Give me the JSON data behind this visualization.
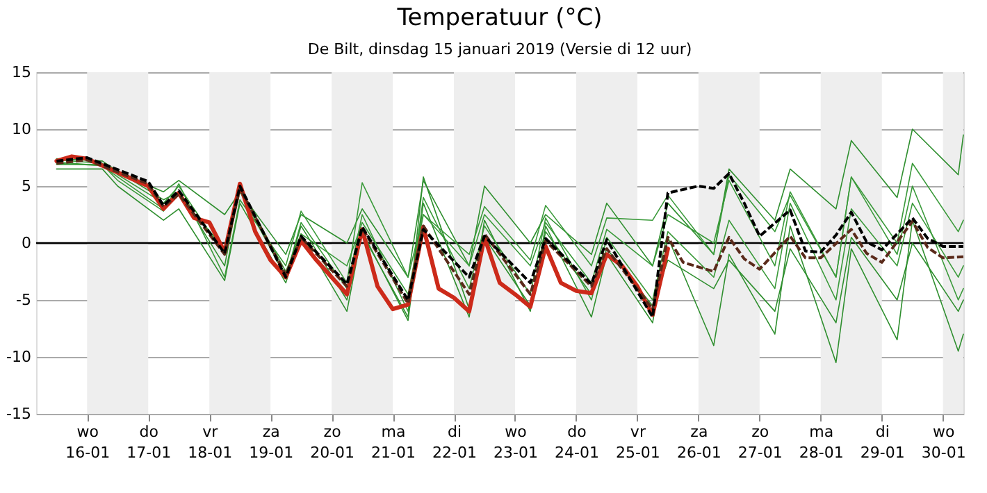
{
  "chart_data": {
    "type": "line",
    "title": "Temperatuur (°C)",
    "subtitle": "De Bilt, dinsdag 15 januari 2019 (Versie di 12 uur)",
    "xlim": [
      "2019-01-15T04:00",
      "2019-01-30T08:00"
    ],
    "xticks": [
      {
        "value": "2019-01-16T00:00",
        "label": "wo\n16-01"
      },
      {
        "value": "2019-01-17T00:00",
        "label": "do\n17-01"
      },
      {
        "value": "2019-01-18T00:00",
        "label": "vr\n18-01"
      },
      {
        "value": "2019-01-19T00:00",
        "label": "za\n19-01"
      },
      {
        "value": "2019-01-20T00:00",
        "label": "zo\n20-01"
      },
      {
        "value": "2019-01-21T00:00",
        "label": "ma\n21-01"
      },
      {
        "value": "2019-01-22T00:00",
        "label": "di\n22-01"
      },
      {
        "value": "2019-01-23T00:00",
        "label": "wo\n23-01"
      },
      {
        "value": "2019-01-24T00:00",
        "label": "do\n24-01"
      },
      {
        "value": "2019-01-25T00:00",
        "label": "vr\n25-01"
      },
      {
        "value": "2019-01-26T00:00",
        "label": "za\n26-01"
      },
      {
        "value": "2019-01-27T00:00",
        "label": "zo\n27-01"
      },
      {
        "value": "2019-01-28T00:00",
        "label": "ma\n28-01"
      },
      {
        "value": "2019-01-29T00:00",
        "label": "di\n29-01"
      },
      {
        "value": "2019-01-30T00:00",
        "label": "wo\n30-01"
      }
    ],
    "ylim": [
      -15,
      15
    ],
    "yticks": [
      -15,
      -10,
      -5,
      0,
      5,
      10,
      15
    ],
    "grid": "y",
    "line_style": "solid",
    "ref_lines": [
      {
        "axis": "y",
        "value": 0,
        "color": "#000000"
      }
    ],
    "bands": [
      {
        "axis": "x",
        "from": "2019-01-16T00:00",
        "to": "2019-01-17T00:00",
        "color": "#eeeeee"
      },
      {
        "axis": "x",
        "from": "2019-01-18T00:00",
        "to": "2019-01-19T00:00",
        "color": "#eeeeee"
      },
      {
        "axis": "x",
        "from": "2019-01-20T00:00",
        "to": "2019-01-21T00:00",
        "color": "#eeeeee"
      },
      {
        "axis": "x",
        "from": "2019-01-22T00:00",
        "to": "2019-01-23T00:00",
        "color": "#eeeeee"
      },
      {
        "axis": "x",
        "from": "2019-01-24T00:00",
        "to": "2019-01-25T00:00",
        "color": "#eeeeee"
      },
      {
        "axis": "x",
        "from": "2019-01-26T00:00",
        "to": "2019-01-27T00:00",
        "color": "#eeeeee"
      },
      {
        "axis": "x",
        "from": "2019-01-28T00:00",
        "to": "2019-01-29T00:00",
        "color": "#eeeeee"
      },
      {
        "axis": "x",
        "from": "2019-01-30T00:00",
        "to": "2019-01-30T08:00",
        "color": "#eeeeee"
      }
    ],
    "series": [
      {
        "color": "#2f8f2f",
        "x": [
          "2019-01-15T12:00",
          "2019-01-16T06:00",
          "2019-01-16T12:00",
          "2019-01-17T06:00",
          "2019-01-17T12:00",
          "2019-01-18T06:00",
          "2019-01-18T12:00",
          "2019-01-19T06:00",
          "2019-01-19T12:00",
          "2019-01-20T06:00",
          "2019-01-20T12:00",
          "2019-01-21T06:00",
          "2019-01-21T12:00",
          "2019-01-22T06:00",
          "2019-01-22T12:00",
          "2019-01-23T06:00",
          "2019-01-23T12:00",
          "2019-01-24T06:00",
          "2019-01-24T12:00",
          "2019-01-25T06:00",
          "2019-01-25T12:00",
          "2019-01-26T06:00",
          "2019-01-26T12:00",
          "2019-01-27T06:00",
          "2019-01-27T12:00",
          "2019-01-28T06:00",
          "2019-01-28T12:00",
          "2019-01-29T06:00",
          "2019-01-29T12:00",
          "2019-01-30T06:00",
          "2019-01-30T08:00"
        ],
        "values": [
          7.0,
          6.8,
          6.2,
          4.5,
          5.5,
          2.5,
          4.5,
          -1,
          2.5,
          0,
          3,
          -3,
          5.5,
          -2,
          5,
          0,
          2.5,
          -1,
          3.5,
          -2,
          3.5,
          -1,
          6.5,
          2,
          6.5,
          3,
          9,
          4,
          10,
          6,
          9.5
        ]
      },
      {
        "color": "#2f8f2f",
        "x": [
          "2019-01-15T12:00",
          "2019-01-16T06:00",
          "2019-01-16T12:00",
          "2019-01-17T06:00",
          "2019-01-17T12:00",
          "2019-01-18T06:00",
          "2019-01-18T12:00",
          "2019-01-19T06:00",
          "2019-01-19T12:00",
          "2019-01-20T06:00",
          "2019-01-20T12:00",
          "2019-01-21T06:00",
          "2019-01-21T12:00",
          "2019-01-22T06:00",
          "2019-01-22T12:00",
          "2019-01-23T06:00",
          "2019-01-23T12:00",
          "2019-01-24T06:00",
          "2019-01-24T12:00",
          "2019-01-25T06:00",
          "2019-01-25T12:00",
          "2019-01-26T06:00",
          "2019-01-26T12:00",
          "2019-01-27T06:00",
          "2019-01-27T12:00",
          "2019-01-28T06:00",
          "2019-01-28T12:00",
          "2019-01-29T06:00",
          "2019-01-29T12:00",
          "2019-01-30T06:00",
          "2019-01-30T08:00"
        ],
        "values": [
          6.5,
          6.5,
          5.0,
          2.0,
          3.0,
          -3.3,
          3.5,
          -3.5,
          0.8,
          -6,
          1,
          -6.8,
          3.5,
          -6.5,
          2,
          -6,
          1.5,
          -6.5,
          -1,
          -7,
          0.5,
          -9,
          -1,
          -8,
          1.5,
          -10.5,
          -0.5,
          -8.5,
          2,
          -9.5,
          -8
        ]
      },
      {
        "color": "#3a9a3a",
        "x": [
          "2019-01-15T12:00",
          "2019-01-16T06:00",
          "2019-01-16T12:00",
          "2019-01-17T06:00",
          "2019-01-17T12:00",
          "2019-01-18T06:00",
          "2019-01-18T12:00",
          "2019-01-19T06:00",
          "2019-01-19T12:00",
          "2019-01-20T06:00",
          "2019-01-20T12:00",
          "2019-01-21T06:00",
          "2019-01-21T12:00",
          "2019-01-22T06:00",
          "2019-01-22T12:00",
          "2019-01-23T06:00",
          "2019-01-23T12:00",
          "2019-01-24T06:00",
          "2019-01-24T12:00",
          "2019-01-25T06:00",
          "2019-01-25T12:00",
          "2019-01-26T06:00",
          "2019-01-26T12:00",
          "2019-01-27T06:00",
          "2019-01-27T12:00",
          "2019-01-28T06:00",
          "2019-01-28T12:00",
          "2019-01-29T06:00",
          "2019-01-29T12:00",
          "2019-01-30T06:00",
          "2019-01-30T08:00"
        ],
        "values": [
          7.3,
          7.0,
          6.0,
          3.5,
          5.0,
          -1,
          4.5,
          -3,
          1.8,
          -4,
          2.5,
          -6,
          4,
          -4,
          1.5,
          -4.5,
          2.2,
          -5,
          0.5,
          -5,
          1,
          -3,
          2,
          -4,
          3.5,
          -5,
          3,
          -2,
          3.5,
          -3,
          -2
        ]
      },
      {
        "color": "#3a9a3a",
        "x": [
          "2019-01-15T12:00",
          "2019-01-16T06:00",
          "2019-01-16T12:00",
          "2019-01-17T06:00",
          "2019-01-17T12:00",
          "2019-01-18T06:00",
          "2019-01-18T12:00",
          "2019-01-19T06:00",
          "2019-01-19T12:00",
          "2019-01-20T06:00",
          "2019-01-20T12:00",
          "2019-01-21T06:00",
          "2019-01-21T12:00",
          "2019-01-22T06:00",
          "2019-01-22T12:00",
          "2019-01-23T06:00",
          "2019-01-23T12:00",
          "2019-01-24T06:00",
          "2019-01-24T12:00",
          "2019-01-25T06:00",
          "2019-01-25T12:00",
          "2019-01-26T06:00",
          "2019-01-26T12:00",
          "2019-01-27T06:00",
          "2019-01-27T12:00",
          "2019-01-28T06:00",
          "2019-01-28T12:00",
          "2019-01-29T06:00",
          "2019-01-29T12:00",
          "2019-01-30T06:00",
          "2019-01-30T08:00"
        ],
        "values": [
          7.1,
          6.8,
          5.8,
          3,
          4.2,
          -0.5,
          4.8,
          -2.5,
          0.8,
          -2,
          1.8,
          -4.5,
          2.5,
          -2,
          2.5,
          -2,
          1.8,
          -3.5,
          1.2,
          -2,
          2.5,
          0,
          5.5,
          -2,
          4.5,
          -3,
          5.8,
          -1,
          5,
          -5,
          -4
        ]
      },
      {
        "color": "#2f8f2f",
        "x": [
          "2019-01-15T12:00",
          "2019-01-16T06:00",
          "2019-01-16T12:00",
          "2019-01-17T06:00",
          "2019-01-17T12:00",
          "2019-01-18T06:00",
          "2019-01-18T12:00",
          "2019-01-19T06:00",
          "2019-01-19T12:00",
          "2019-01-20T06:00",
          "2019-01-20T12:00",
          "2019-01-21T06:00",
          "2019-01-21T12:00",
          "2019-01-22T06:00",
          "2019-01-22T12:00",
          "2019-01-23T06:00",
          "2019-01-23T12:00",
          "2019-01-24T06:00",
          "2019-01-24T12:00",
          "2019-01-25T06:00",
          "2019-01-25T12:00",
          "2019-01-26T06:00",
          "2019-01-26T12:00",
          "2019-01-27T06:00",
          "2019-01-27T12:00",
          "2019-01-28T06:00",
          "2019-01-28T12:00",
          "2019-01-29T06:00",
          "2019-01-29T12:00",
          "2019-01-30T06:00",
          "2019-01-30T08:00"
        ],
        "values": [
          7.4,
          7.2,
          6.3,
          3.8,
          4.5,
          -2,
          5.0,
          -3,
          1.5,
          -5,
          0.8,
          -6.5,
          5.8,
          -5.8,
          0.5,
          -5.5,
          1.0,
          -4.5,
          -0.5,
          -5.5,
          -1.5,
          -4,
          -1.5,
          -6,
          -0.5,
          -7,
          0.5,
          -5,
          0.0,
          -6,
          -5
        ]
      },
      {
        "color": "#3a9a3a",
        "x": [
          "2019-01-15T12:00",
          "2019-01-16T06:00",
          "2019-01-16T12:00",
          "2019-01-17T06:00",
          "2019-01-17T12:00",
          "2019-01-18T06:00",
          "2019-01-18T12:00",
          "2019-01-19T06:00",
          "2019-01-19T12:00",
          "2019-01-20T06:00",
          "2019-01-20T12:00",
          "2019-01-21T06:00",
          "2019-01-21T12:00",
          "2019-01-22T06:00",
          "2019-01-22T12:00",
          "2019-01-23T06:00",
          "2019-01-23T12:00",
          "2019-01-24T06:00",
          "2019-01-24T12:00",
          "2019-01-25T06:00",
          "2019-01-25T12:00",
          "2019-01-26T06:00",
          "2019-01-26T12:00",
          "2019-01-27T06:00",
          "2019-01-27T12:00",
          "2019-01-28T06:00",
          "2019-01-28T12:00",
          "2019-01-29T06:00",
          "2019-01-29T12:00",
          "2019-01-30T06:00",
          "2019-01-30T08:00"
        ],
        "values": [
          6.9,
          6.9,
          5.5,
          2.8,
          5.2,
          -3,
          3.8,
          -2,
          2.8,
          -3.5,
          5.3,
          -3,
          2.5,
          -1,
          3.2,
          -1.5,
          3.3,
          -2,
          2.2,
          2,
          4.2,
          -1,
          6.0,
          1,
          4.2,
          -3,
          5.8,
          0,
          7,
          1,
          2
        ]
      },
      {
        "color": "#5a2a1a",
        "line_style": "dashed",
        "x": [
          "2019-01-15T12:00",
          "2019-01-16T00:00",
          "2019-01-17T00:00",
          "2019-01-17T06:00",
          "2019-01-17T12:00",
          "2019-01-18T06:00",
          "2019-01-18T12:00",
          "2019-01-19T06:00",
          "2019-01-19T12:00",
          "2019-01-20T06:00",
          "2019-01-20T12:00",
          "2019-01-21T06:00",
          "2019-01-21T12:00",
          "2019-01-22T06:00",
          "2019-01-22T12:00",
          "2019-01-23T06:00",
          "2019-01-23T12:00",
          "2019-01-24T06:00",
          "2019-01-24T12:00",
          "2019-01-25T06:00",
          "2019-01-25T12:00",
          "2019-01-25T18:00",
          "2019-01-26T06:00",
          "2019-01-26T12:00",
          "2019-01-26T18:00",
          "2019-01-27T00:00",
          "2019-01-27T12:00",
          "2019-01-27T18:00",
          "2019-01-28T00:00",
          "2019-01-28T12:00",
          "2019-01-28T18:00",
          "2019-01-29T00:00",
          "2019-01-29T12:00",
          "2019-01-29T18:00",
          "2019-01-30T00:00",
          "2019-01-30T08:00"
        ],
        "values": [
          7.0,
          7.3,
          5.2,
          3.2,
          4.3,
          -1.0,
          4.8,
          -2.8,
          0.5,
          -3.8,
          1.3,
          -5.3,
          1.5,
          -4.5,
          0.8,
          -4.5,
          0.2,
          -3.8,
          -0.5,
          -5.8,
          0.5,
          -1.7,
          -2.5,
          0.5,
          -1.4,
          -2.3,
          0.6,
          -1.3,
          -1.3,
          1.2,
          -0.9,
          -1.7,
          1.9,
          -0.4,
          -1.3,
          -1.2
        ]
      },
      {
        "color": "#000000",
        "line_style": "dashed",
        "x": [
          "2019-01-15T12:00",
          "2019-01-16T00:00",
          "2019-01-17T00:00",
          "2019-01-17T06:00",
          "2019-01-17T12:00",
          "2019-01-18T06:00",
          "2019-01-18T12:00",
          "2019-01-19T06:00",
          "2019-01-19T12:00",
          "2019-01-20T06:00",
          "2019-01-20T12:00",
          "2019-01-21T06:00",
          "2019-01-21T12:00",
          "2019-01-22T06:00",
          "2019-01-22T12:00",
          "2019-01-23T06:00",
          "2019-01-23T12:00",
          "2019-01-24T06:00",
          "2019-01-24T12:00",
          "2019-01-25T06:00",
          "2019-01-25T12:00",
          "2019-01-26T00:00",
          "2019-01-26T06:00",
          "2019-01-26T12:00",
          "2019-01-26T18:00",
          "2019-01-27T00:00",
          "2019-01-27T12:00",
          "2019-01-27T18:00",
          "2019-01-28T00:00",
          "2019-01-28T06:00",
          "2019-01-28T12:00",
          "2019-01-28T18:00",
          "2019-01-29T00:00",
          "2019-01-29T12:00",
          "2019-01-29T18:00",
          "2019-01-30T00:00",
          "2019-01-30T08:00"
        ],
        "values": [
          7.2,
          7.5,
          5.4,
          3.3,
          4.6,
          -0.9,
          5.0,
          -3.0,
          0.6,
          -3.6,
          1.4,
          -5.0,
          1.2,
          -3.0,
          0.6,
          -3.5,
          0.4,
          -3.6,
          0.3,
          -6.5,
          4.4,
          5.0,
          4.8,
          6.1,
          3.5,
          0.6,
          2.9,
          -0.7,
          -0.8,
          0.7,
          2.7,
          0.1,
          -0.6,
          2.2,
          0.4,
          -0.3,
          -0.3
        ]
      },
      {
        "color": "#cc2a1a",
        "x": [
          "2019-01-15T12:00",
          "2019-01-15T18:00",
          "2019-01-16T00:00",
          "2019-01-16T06:00",
          "2019-01-16T12:00",
          "2019-01-16T18:00",
          "2019-01-17T00:00",
          "2019-01-17T06:00",
          "2019-01-17T12:00",
          "2019-01-17T18:00",
          "2019-01-18T00:00",
          "2019-01-18T06:00",
          "2019-01-18T12:00",
          "2019-01-18T18:00",
          "2019-01-19T00:00",
          "2019-01-19T06:00",
          "2019-01-19T12:00",
          "2019-01-19T18:00",
          "2019-01-20T00:00",
          "2019-01-20T06:00",
          "2019-01-20T12:00",
          "2019-01-20T18:00",
          "2019-01-21T00:00",
          "2019-01-21T06:00",
          "2019-01-21T12:00",
          "2019-01-21T18:00",
          "2019-01-22T00:00",
          "2019-01-22T06:00",
          "2019-01-22T12:00",
          "2019-01-22T18:00",
          "2019-01-23T00:00",
          "2019-01-23T06:00",
          "2019-01-23T12:00",
          "2019-01-23T18:00",
          "2019-01-24T00:00",
          "2019-01-24T06:00",
          "2019-01-24T12:00",
          "2019-01-24T18:00",
          "2019-01-25T00:00",
          "2019-01-25T06:00",
          "2019-01-25T12:00"
        ],
        "values": [
          7.2,
          7.6,
          7.4,
          6.8,
          6.2,
          5.6,
          5.0,
          3.0,
          4.4,
          2.2,
          1.8,
          -0.8,
          5.2,
          1.0,
          -1.5,
          -3.0,
          0.2,
          -1.5,
          -3.0,
          -4.5,
          1.2,
          -3.8,
          -5.8,
          -5.4,
          1.4,
          -4.0,
          -4.8,
          -6.0,
          0.5,
          -3.5,
          -4.5,
          -5.6,
          -0.3,
          -3.5,
          -4.2,
          -4.4,
          -1.0,
          -2.0,
          -3.8,
          -6.3,
          -0.5
        ]
      }
    ]
  }
}
